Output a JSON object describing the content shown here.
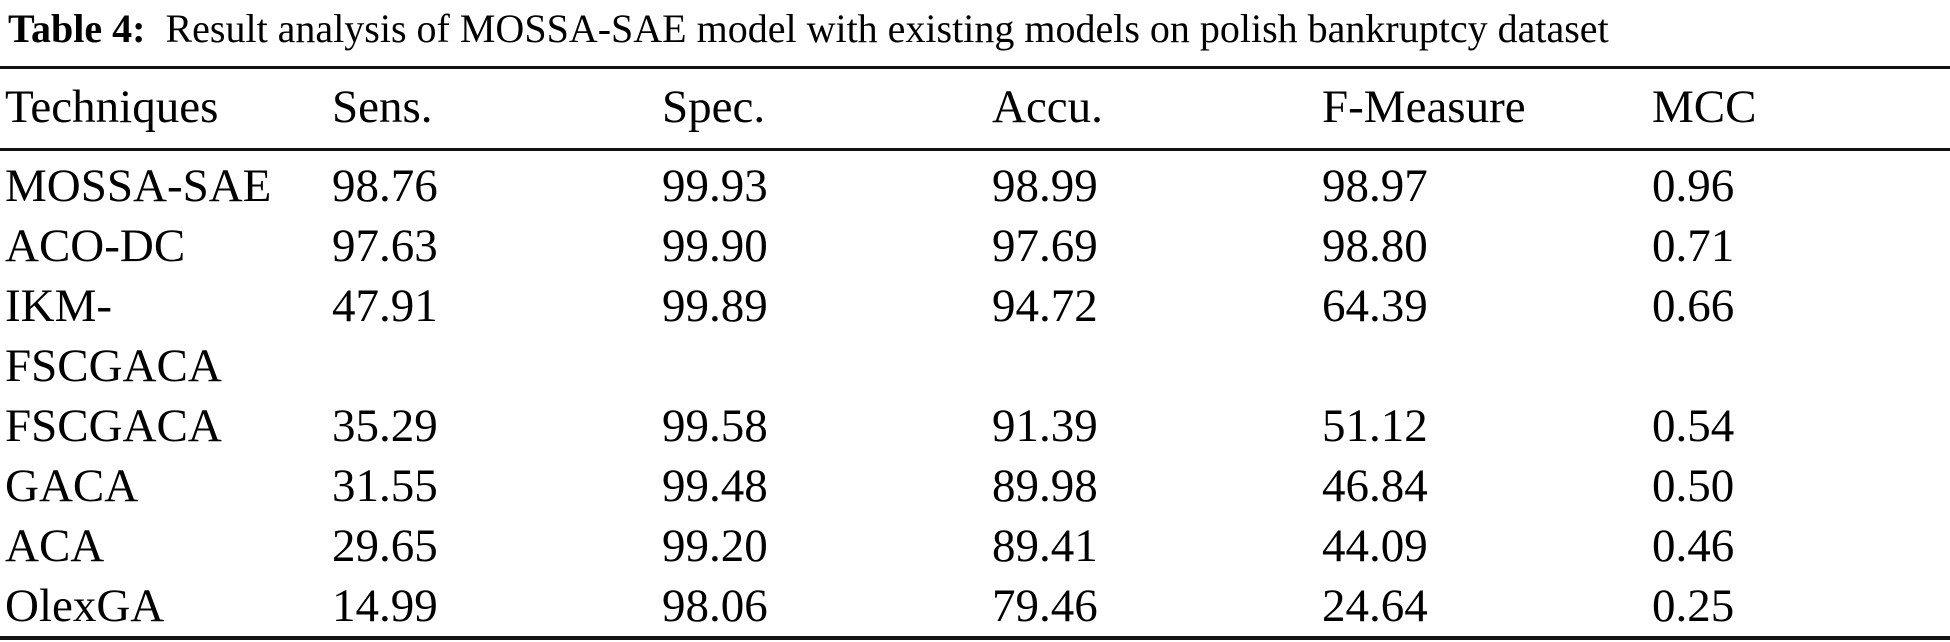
{
  "title": {
    "label": "Table 4:",
    "text": "Result analysis of MOSSA-SAE model with existing models on polish bankruptcy dataset"
  },
  "table": {
    "columns": [
      "Techniques",
      "Sens.",
      "Spec.",
      "Accu.",
      "F-Measure",
      "MCC"
    ],
    "rows": [
      {
        "technique": "MOSSA-SAE",
        "sens": "98.76",
        "spec": "99.93",
        "accu": "98.99",
        "f_measure": "98.97",
        "mcc": "0.96"
      },
      {
        "technique": "ACO-DC",
        "sens": "97.63",
        "spec": "99.90",
        "accu": "97.69",
        "f_measure": "98.80",
        "mcc": "0.71"
      },
      {
        "technique": "IKM-\nFSCGACA",
        "sens": "47.91",
        "spec": "99.89",
        "accu": "94.72",
        "f_measure": "64.39",
        "mcc": "0.66"
      },
      {
        "technique": "FSCGACA",
        "sens": "35.29",
        "spec": "99.58",
        "accu": "91.39",
        "f_measure": "51.12",
        "mcc": "0.54"
      },
      {
        "technique": "GACA",
        "sens": "31.55",
        "spec": "99.48",
        "accu": "89.98",
        "f_measure": "46.84",
        "mcc": "0.50"
      },
      {
        "technique": "ACA",
        "sens": "29.65",
        "spec": "99.20",
        "accu": "89.41",
        "f_measure": "44.09",
        "mcc": "0.46"
      },
      {
        "technique": "OlexGA",
        "sens": "14.99",
        "spec": "98.06",
        "accu": "79.46",
        "f_measure": "24.64",
        "mcc": "0.25"
      }
    ]
  },
  "colors": {
    "text": "#000000",
    "background": "#ffffff",
    "rule": "#121212"
  }
}
